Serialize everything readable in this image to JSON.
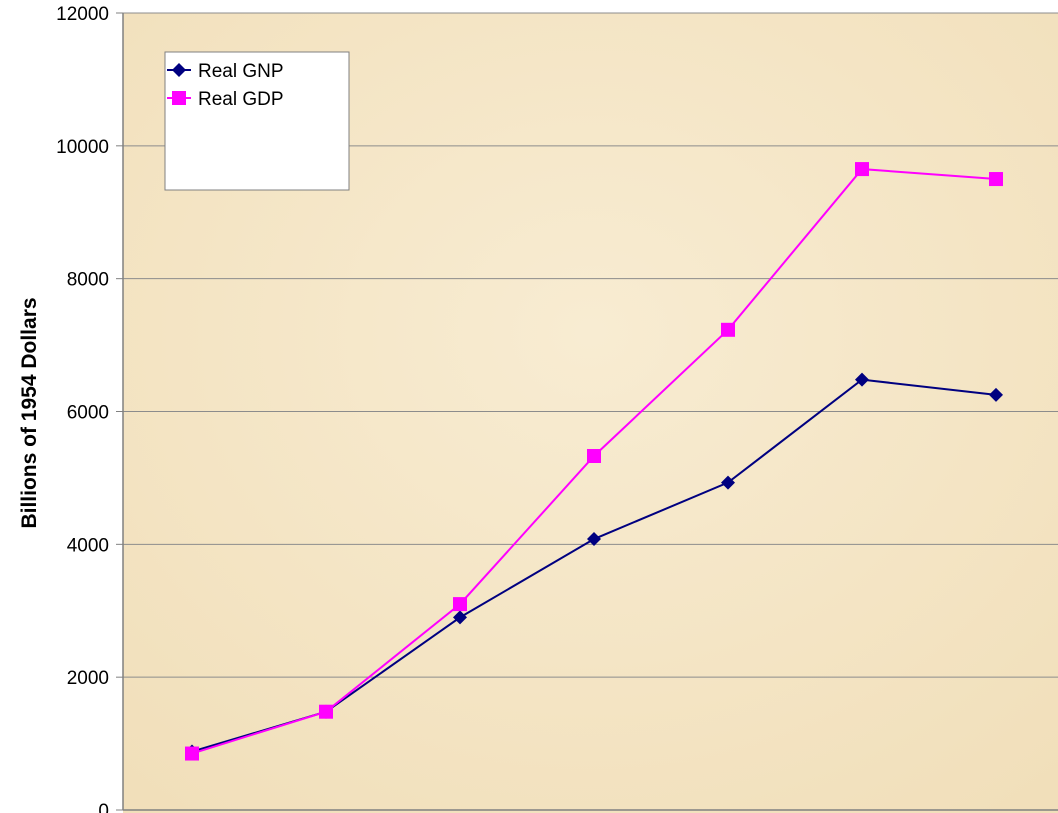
{
  "chart_data": {
    "type": "line",
    "title": "",
    "xlabel": "",
    "ylabel": "Billions of 1954 Dollars",
    "ylim": [
      0,
      12000
    ],
    "yticks": [
      0,
      2000,
      4000,
      6000,
      8000,
      10000,
      12000
    ],
    "x": [
      1,
      2,
      3,
      4,
      5,
      6,
      7
    ],
    "grid": "horizontal",
    "legend_position": "top-left",
    "series": [
      {
        "name": "Real GNP",
        "marker": "diamond",
        "color": "#000080",
        "values": [
          880,
          1480,
          2900,
          4080,
          4930,
          6480,
          6250
        ]
      },
      {
        "name": "Real GDP",
        "marker": "square",
        "color": "#ff00ff",
        "values": [
          850,
          1480,
          3100,
          5330,
          7230,
          9650,
          9500
        ]
      }
    ],
    "colors": {
      "plot_background": "#f6e7c6",
      "gridline": "#8c8c8c",
      "axis": "#808080",
      "legend_background": "#ffffff"
    }
  }
}
